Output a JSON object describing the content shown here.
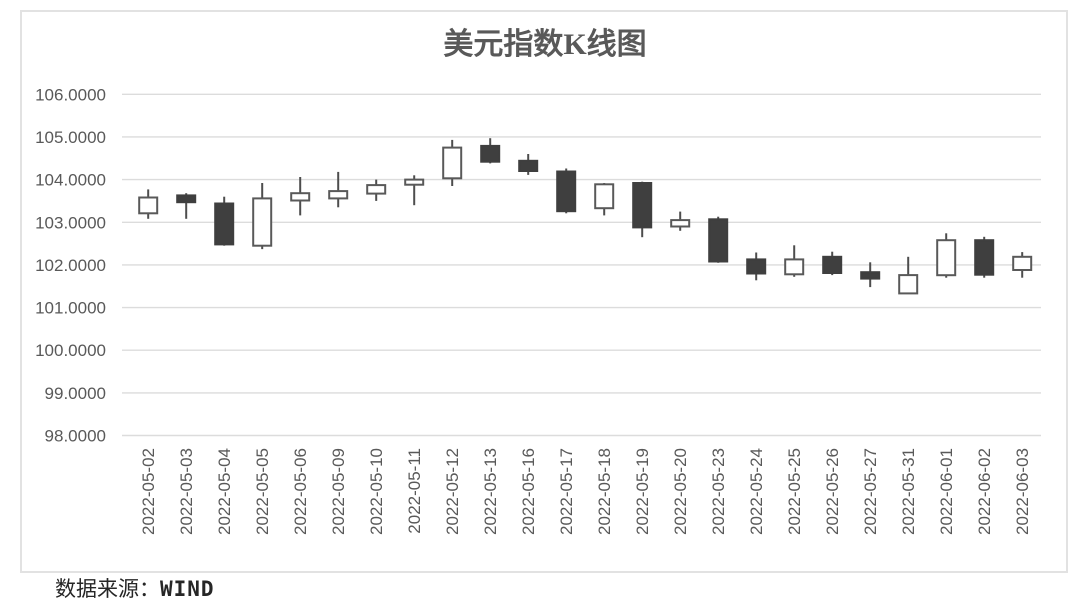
{
  "title": "美元指数K线图",
  "source": {
    "label": "数据来源：",
    "value": "WIND"
  },
  "chart_data": {
    "type": "candlestick",
    "title": "美元指数K线图",
    "source_note": "数据来源：WIND",
    "xlabel": "",
    "ylabel": "",
    "ylim": [
      98,
      106
    ],
    "y_tick_step": 1,
    "grid": true,
    "legend_position": "none",
    "y_ticks": [
      {
        "value": 106,
        "label": "106.0000"
      },
      {
        "value": 105,
        "label": "105.0000"
      },
      {
        "value": 104,
        "label": "104.0000"
      },
      {
        "value": 103,
        "label": "103.0000"
      },
      {
        "value": 102,
        "label": "102.0000"
      },
      {
        "value": 101,
        "label": "101.0000"
      },
      {
        "value": 100,
        "label": "100.0000"
      },
      {
        "value": 99,
        "label": "99.0000"
      },
      {
        "value": 98,
        "label": "98.0000"
      }
    ],
    "categories": [
      "2022-05-02",
      "2022-05-03",
      "2022-05-04",
      "2022-05-05",
      "2022-05-06",
      "2022-05-09",
      "2022-05-10",
      "2022-05-11",
      "2022-05-12",
      "2022-05-13",
      "2022-05-16",
      "2022-05-17",
      "2022-05-18",
      "2022-05-19",
      "2022-05-20",
      "2022-05-23",
      "2022-05-24",
      "2022-05-25",
      "2022-05-26",
      "2022-05-27",
      "2022-05-31",
      "2022-06-01",
      "2022-06-02",
      "2022-06-03"
    ],
    "candles": [
      {
        "open": 103.21,
        "high": 103.77,
        "low": 103.08,
        "close": 103.58
      },
      {
        "open": 103.63,
        "high": 103.68,
        "low": 103.08,
        "close": 103.47
      },
      {
        "open": 103.44,
        "high": 103.6,
        "low": 102.45,
        "close": 102.48
      },
      {
        "open": 102.45,
        "high": 103.92,
        "low": 102.37,
        "close": 103.56
      },
      {
        "open": 103.51,
        "high": 104.06,
        "low": 103.16,
        "close": 103.68
      },
      {
        "open": 103.56,
        "high": 104.18,
        "low": 103.35,
        "close": 103.73
      },
      {
        "open": 103.67,
        "high": 104.0,
        "low": 103.5,
        "close": 103.87
      },
      {
        "open": 103.88,
        "high": 104.1,
        "low": 103.4,
        "close": 104.0
      },
      {
        "open": 104.03,
        "high": 104.93,
        "low": 103.85,
        "close": 104.75
      },
      {
        "open": 104.79,
        "high": 104.97,
        "low": 104.38,
        "close": 104.42
      },
      {
        "open": 104.44,
        "high": 104.6,
        "low": 104.11,
        "close": 104.2
      },
      {
        "open": 104.19,
        "high": 104.26,
        "low": 103.21,
        "close": 103.26
      },
      {
        "open": 103.33,
        "high": 103.92,
        "low": 103.16,
        "close": 103.89
      },
      {
        "open": 103.92,
        "high": 103.95,
        "low": 102.65,
        "close": 102.88
      },
      {
        "open": 102.9,
        "high": 103.25,
        "low": 102.8,
        "close": 103.05
      },
      {
        "open": 103.07,
        "high": 103.13,
        "low": 102.05,
        "close": 102.08
      },
      {
        "open": 102.13,
        "high": 102.29,
        "low": 101.64,
        "close": 101.8
      },
      {
        "open": 101.78,
        "high": 102.46,
        "low": 101.72,
        "close": 102.13
      },
      {
        "open": 102.19,
        "high": 102.31,
        "low": 101.76,
        "close": 101.81
      },
      {
        "open": 101.83,
        "high": 102.06,
        "low": 101.48,
        "close": 101.68
      },
      {
        "open": 101.33,
        "high": 102.19,
        "low": 101.33,
        "close": 101.76
      },
      {
        "open": 101.76,
        "high": 102.74,
        "low": 101.7,
        "close": 102.58
      },
      {
        "open": 102.58,
        "high": 102.66,
        "low": 101.7,
        "close": 101.77
      },
      {
        "open": 101.88,
        "high": 102.3,
        "low": 101.7,
        "close": 102.19
      }
    ],
    "colors": {
      "up_fill": "#ffffff",
      "up_stroke": "#595959",
      "down_fill": "#3f3f3f",
      "down_stroke": "#3f3f3f",
      "wick": "#4d4d4d",
      "grid": "#dcdcdc",
      "axis_label": "#595959",
      "title_text": "#595959",
      "source_text": "#262626",
      "card_border": "#e2e2e2"
    }
  }
}
